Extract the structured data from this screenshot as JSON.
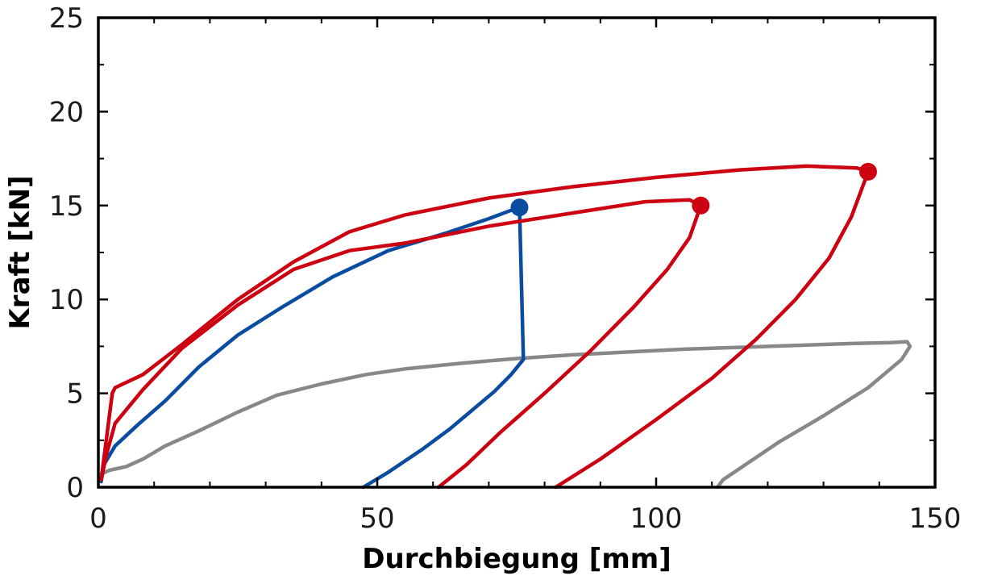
{
  "chart_data": {
    "type": "line",
    "title": "",
    "xlabel": "Durchbiegung [mm]",
    "ylabel": "Kraft [kN]",
    "xlim": [
      0,
      150
    ],
    "ylim": [
      0,
      25
    ],
    "xticks": [
      0,
      50,
      100,
      150
    ],
    "yticks": [
      0,
      5,
      10,
      15,
      20,
      25
    ],
    "xtick_labels": [
      "0",
      "50",
      "100",
      "150"
    ],
    "ytick_labels": [
      "0",
      "5",
      "10",
      "15",
      "20",
      "25"
    ],
    "grid": false,
    "legend": "none",
    "series": [
      {
        "color": "#888888",
        "marker_end": false,
        "x": [
          0.5,
          2,
          5,
          8,
          12,
          18,
          25,
          32,
          40,
          48,
          55,
          65,
          75,
          85,
          95,
          105,
          115,
          125,
          135,
          142,
          145,
          145.5,
          144,
          138,
          130,
          122,
          116,
          112,
          111
        ],
        "y": [
          0.7,
          0.9,
          1.1,
          1.5,
          2.2,
          3.0,
          4.0,
          4.9,
          5.5,
          6.0,
          6.3,
          6.6,
          6.85,
          7.05,
          7.2,
          7.35,
          7.45,
          7.55,
          7.65,
          7.7,
          7.75,
          7.5,
          6.8,
          5.3,
          3.8,
          2.4,
          1.2,
          0.4,
          0
        ]
      },
      {
        "color": "#0a4da0",
        "marker_end": true,
        "x": [
          47.5,
          52,
          58,
          63,
          67,
          71,
          74,
          76.2,
          75.5,
          75.4,
          70,
          62,
          52,
          42,
          33,
          25,
          18,
          12,
          7,
          3,
          1,
          0.5
        ],
        "y": [
          0,
          0.8,
          2.0,
          3.1,
          4.1,
          5.1,
          6.0,
          6.8,
          14.9,
          14.9,
          14.3,
          13.5,
          12.6,
          11.2,
          9.6,
          8.1,
          6.4,
          4.6,
          3.3,
          2.2,
          1.2,
          0.3
        ],
        "marker": [
          75.5,
          14.9
        ]
      },
      {
        "color": "#cc0010",
        "marker_end": true,
        "x": [
          61,
          66,
          72,
          80,
          88,
          96,
          102,
          106,
          108,
          106,
          98,
          85,
          70,
          55,
          45,
          35,
          25,
          15,
          8,
          3,
          1.5,
          0.5
        ],
        "y": [
          0,
          1.2,
          2.9,
          5.0,
          7.2,
          9.6,
          11.6,
          13.3,
          15.0,
          15.3,
          15.2,
          14.6,
          13.9,
          13.0,
          12.6,
          11.6,
          9.7,
          7.4,
          5.2,
          3.4,
          1.8,
          0.4
        ],
        "marker": [
          108,
          15.0
        ]
      },
      {
        "color": "#cc0010",
        "marker_end": true,
        "x": [
          82,
          90,
          100,
          110,
          118,
          125,
          131,
          135,
          138,
          136,
          127,
          115,
          100,
          85,
          70,
          55,
          45,
          35,
          25,
          15,
          8,
          3,
          2.5,
          0.5
        ],
        "y": [
          0,
          1.5,
          3.6,
          5.8,
          7.9,
          10.0,
          12.2,
          14.4,
          16.8,
          17.0,
          17.1,
          16.9,
          16.5,
          16.0,
          15.4,
          14.5,
          13.6,
          12.0,
          10.0,
          7.6,
          6.0,
          5.3,
          5.0,
          0.4
        ],
        "marker": [
          138,
          16.8
        ]
      }
    ]
  }
}
